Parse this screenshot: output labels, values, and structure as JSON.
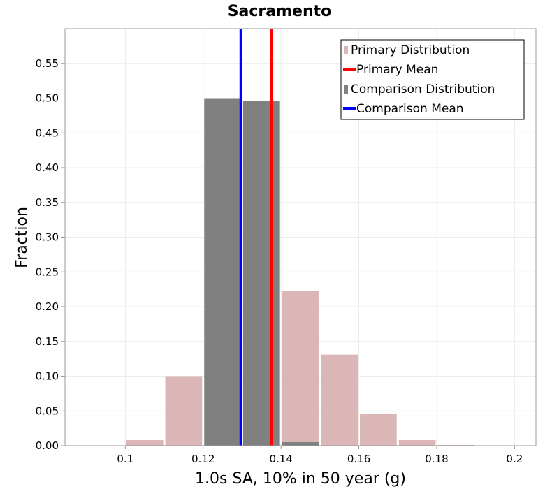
{
  "chart_data": {
    "type": "bar",
    "title": "Sacramento",
    "xlabel": "1.0s SA, 10% in 50 year (g)",
    "ylabel": "Fraction",
    "xlim": [
      0.0845,
      0.2055
    ],
    "ylim": [
      0,
      0.6
    ],
    "x_ticks": [
      "0.1",
      "0.12",
      "0.14",
      "0.16",
      "0.18",
      "0.2"
    ],
    "y_ticks": [
      "0.00",
      "0.05",
      "0.10",
      "0.15",
      "0.20",
      "0.25",
      "0.30",
      "0.35",
      "0.40",
      "0.45",
      "0.50",
      "0.55"
    ],
    "bin_width": 0.01,
    "grid": true,
    "legend_position": "top-right",
    "series": [
      {
        "name": "Primary Distribution",
        "color": "#dbb6b6",
        "bins": [
          {
            "x": 0.105,
            "value": 0.008
          },
          {
            "x": 0.115,
            "value": 0.1
          },
          {
            "x": 0.145,
            "value": 0.223
          },
          {
            "x": 0.155,
            "value": 0.131
          },
          {
            "x": 0.165,
            "value": 0.046
          },
          {
            "x": 0.175,
            "value": 0.008
          },
          {
            "x": 0.185,
            "value": 0.001
          }
        ]
      },
      {
        "name": "Comparison Distribution",
        "color": "#808080",
        "bins": [
          {
            "x": 0.125,
            "value": 0.499
          },
          {
            "x": 0.135,
            "value": 0.496
          },
          {
            "x": 0.145,
            "value": 0.005
          }
        ]
      }
    ],
    "mean_lines": [
      {
        "name": "Primary Mean",
        "color": "#ff0000",
        "value": 0.1375
      },
      {
        "name": "Comparison Mean",
        "color": "#0000ff",
        "value": 0.1297
      }
    ],
    "legend": [
      {
        "label": "Primary Distribution",
        "color": "#dbb6b6",
        "kind": "bar"
      },
      {
        "label": "Primary Mean",
        "color": "#ff0000",
        "kind": "line"
      },
      {
        "label": "Comparison Distribution",
        "color": "#808080",
        "kind": "bar"
      },
      {
        "label": "Comparison Mean",
        "color": "#0000ff",
        "kind": "line"
      }
    ]
  }
}
